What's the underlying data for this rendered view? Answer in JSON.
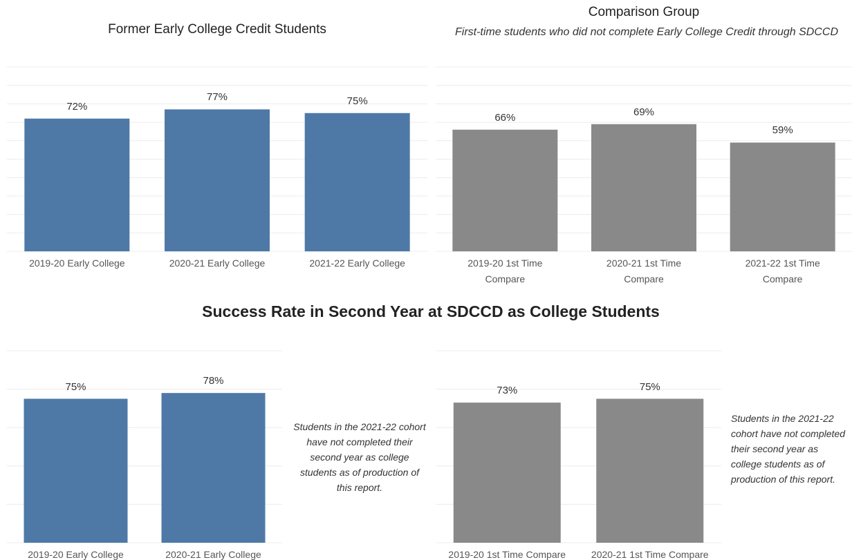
{
  "header": {
    "title": "Success Rate in Second Year at SDCCD as College Students"
  },
  "chart_data": [
    {
      "type": "bar",
      "title": "Former Early College Credit Students",
      "categories": [
        "2019-20 Early College",
        "2020-21 Early College",
        "2021-22 Early College"
      ],
      "values": [
        72,
        77,
        75
      ],
      "value_labels": [
        "72%",
        "77%",
        "75%"
      ],
      "color": "#4e79a7",
      "ylim": [
        0,
        100
      ],
      "yticks": [
        0,
        10,
        20,
        30,
        40,
        50,
        60,
        70,
        80,
        90,
        100
      ],
      "grid": true
    },
    {
      "type": "bar",
      "title": "Comparison Group",
      "subtitle": "First-time students who did not complete Early College Credit through SDCCD",
      "categories": [
        "2019-20 1st Time Compare",
        "2020-21 1st Time Compare",
        "2021-22 1st Time Compare"
      ],
      "values": [
        66,
        69,
        59
      ],
      "value_labels": [
        "66%",
        "69%",
        "59%"
      ],
      "color": "#898989",
      "ylim": [
        0,
        100
      ],
      "yticks": [
        0,
        10,
        20,
        30,
        40,
        50,
        60,
        70,
        80,
        90,
        100
      ],
      "grid": true
    },
    {
      "type": "bar",
      "categories": [
        "2019-20 Early College",
        "2020-21 Early College"
      ],
      "values": [
        75,
        78
      ],
      "value_labels": [
        "75%",
        "78%"
      ],
      "color": "#4e79a7",
      "ylim": [
        0,
        100
      ],
      "yticks": [
        0,
        20,
        40,
        60,
        80,
        100
      ],
      "grid": true,
      "annotation": "Students in the 2021-22 cohort have not completed their second year as college students as of production of this report."
    },
    {
      "type": "bar",
      "categories": [
        "2019-20 1st Time Compare",
        "2020-21 1st Time Compare"
      ],
      "values": [
        73,
        75
      ],
      "value_labels": [
        "73%",
        "75%"
      ],
      "color": "#898989",
      "ylim": [
        0,
        100
      ],
      "yticks": [
        0,
        20,
        40,
        60,
        80,
        100
      ],
      "grid": true,
      "annotation": "Students in the 2021-22 cohort have not completed their second year as college students as of production of this report."
    }
  ]
}
